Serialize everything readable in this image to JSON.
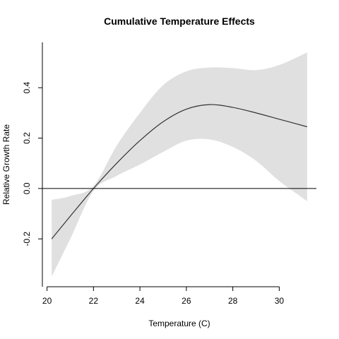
{
  "chart_data": {
    "type": "line",
    "title": "Cumulative Temperature Effects",
    "xlabel": "Temperature (C)",
    "ylabel": "Relative Growth Rate",
    "xlim": [
      19.8,
      31.6
    ],
    "ylim": [
      -0.39,
      0.58
    ],
    "x_ticks": [
      20,
      22,
      24,
      26,
      28,
      30
    ],
    "x_tick_labels": [
      "20",
      "22",
      "24",
      "26",
      "28",
      "30"
    ],
    "y_ticks": [
      -0.2,
      0.0,
      0.2,
      0.4
    ],
    "y_tick_labels": [
      "-0.2",
      "0.0",
      "0.2",
      "0.4"
    ],
    "reference_line_y": 0.0,
    "grid": false,
    "colors": {
      "line": "#333333",
      "band": "#e0e0e0",
      "axis": "#000000"
    },
    "series": [
      {
        "x": [
          20.2,
          21,
          22,
          23,
          24,
          25,
          26,
          27,
          28,
          29,
          30,
          31.2
        ],
        "y": [
          -0.2,
          -0.11,
          0.0,
          0.1,
          0.19,
          0.265,
          0.315,
          0.333,
          0.322,
          0.3,
          0.275,
          0.245
        ],
        "lower": [
          -0.35,
          -0.2,
          -0.01,
          0.05,
          0.095,
          0.145,
          0.19,
          0.195,
          0.165,
          0.11,
          0.03,
          -0.05
        ],
        "upper": [
          -0.045,
          -0.03,
          0.01,
          0.17,
          0.3,
          0.41,
          0.465,
          0.48,
          0.478,
          0.47,
          0.49,
          0.54
        ]
      }
    ]
  }
}
